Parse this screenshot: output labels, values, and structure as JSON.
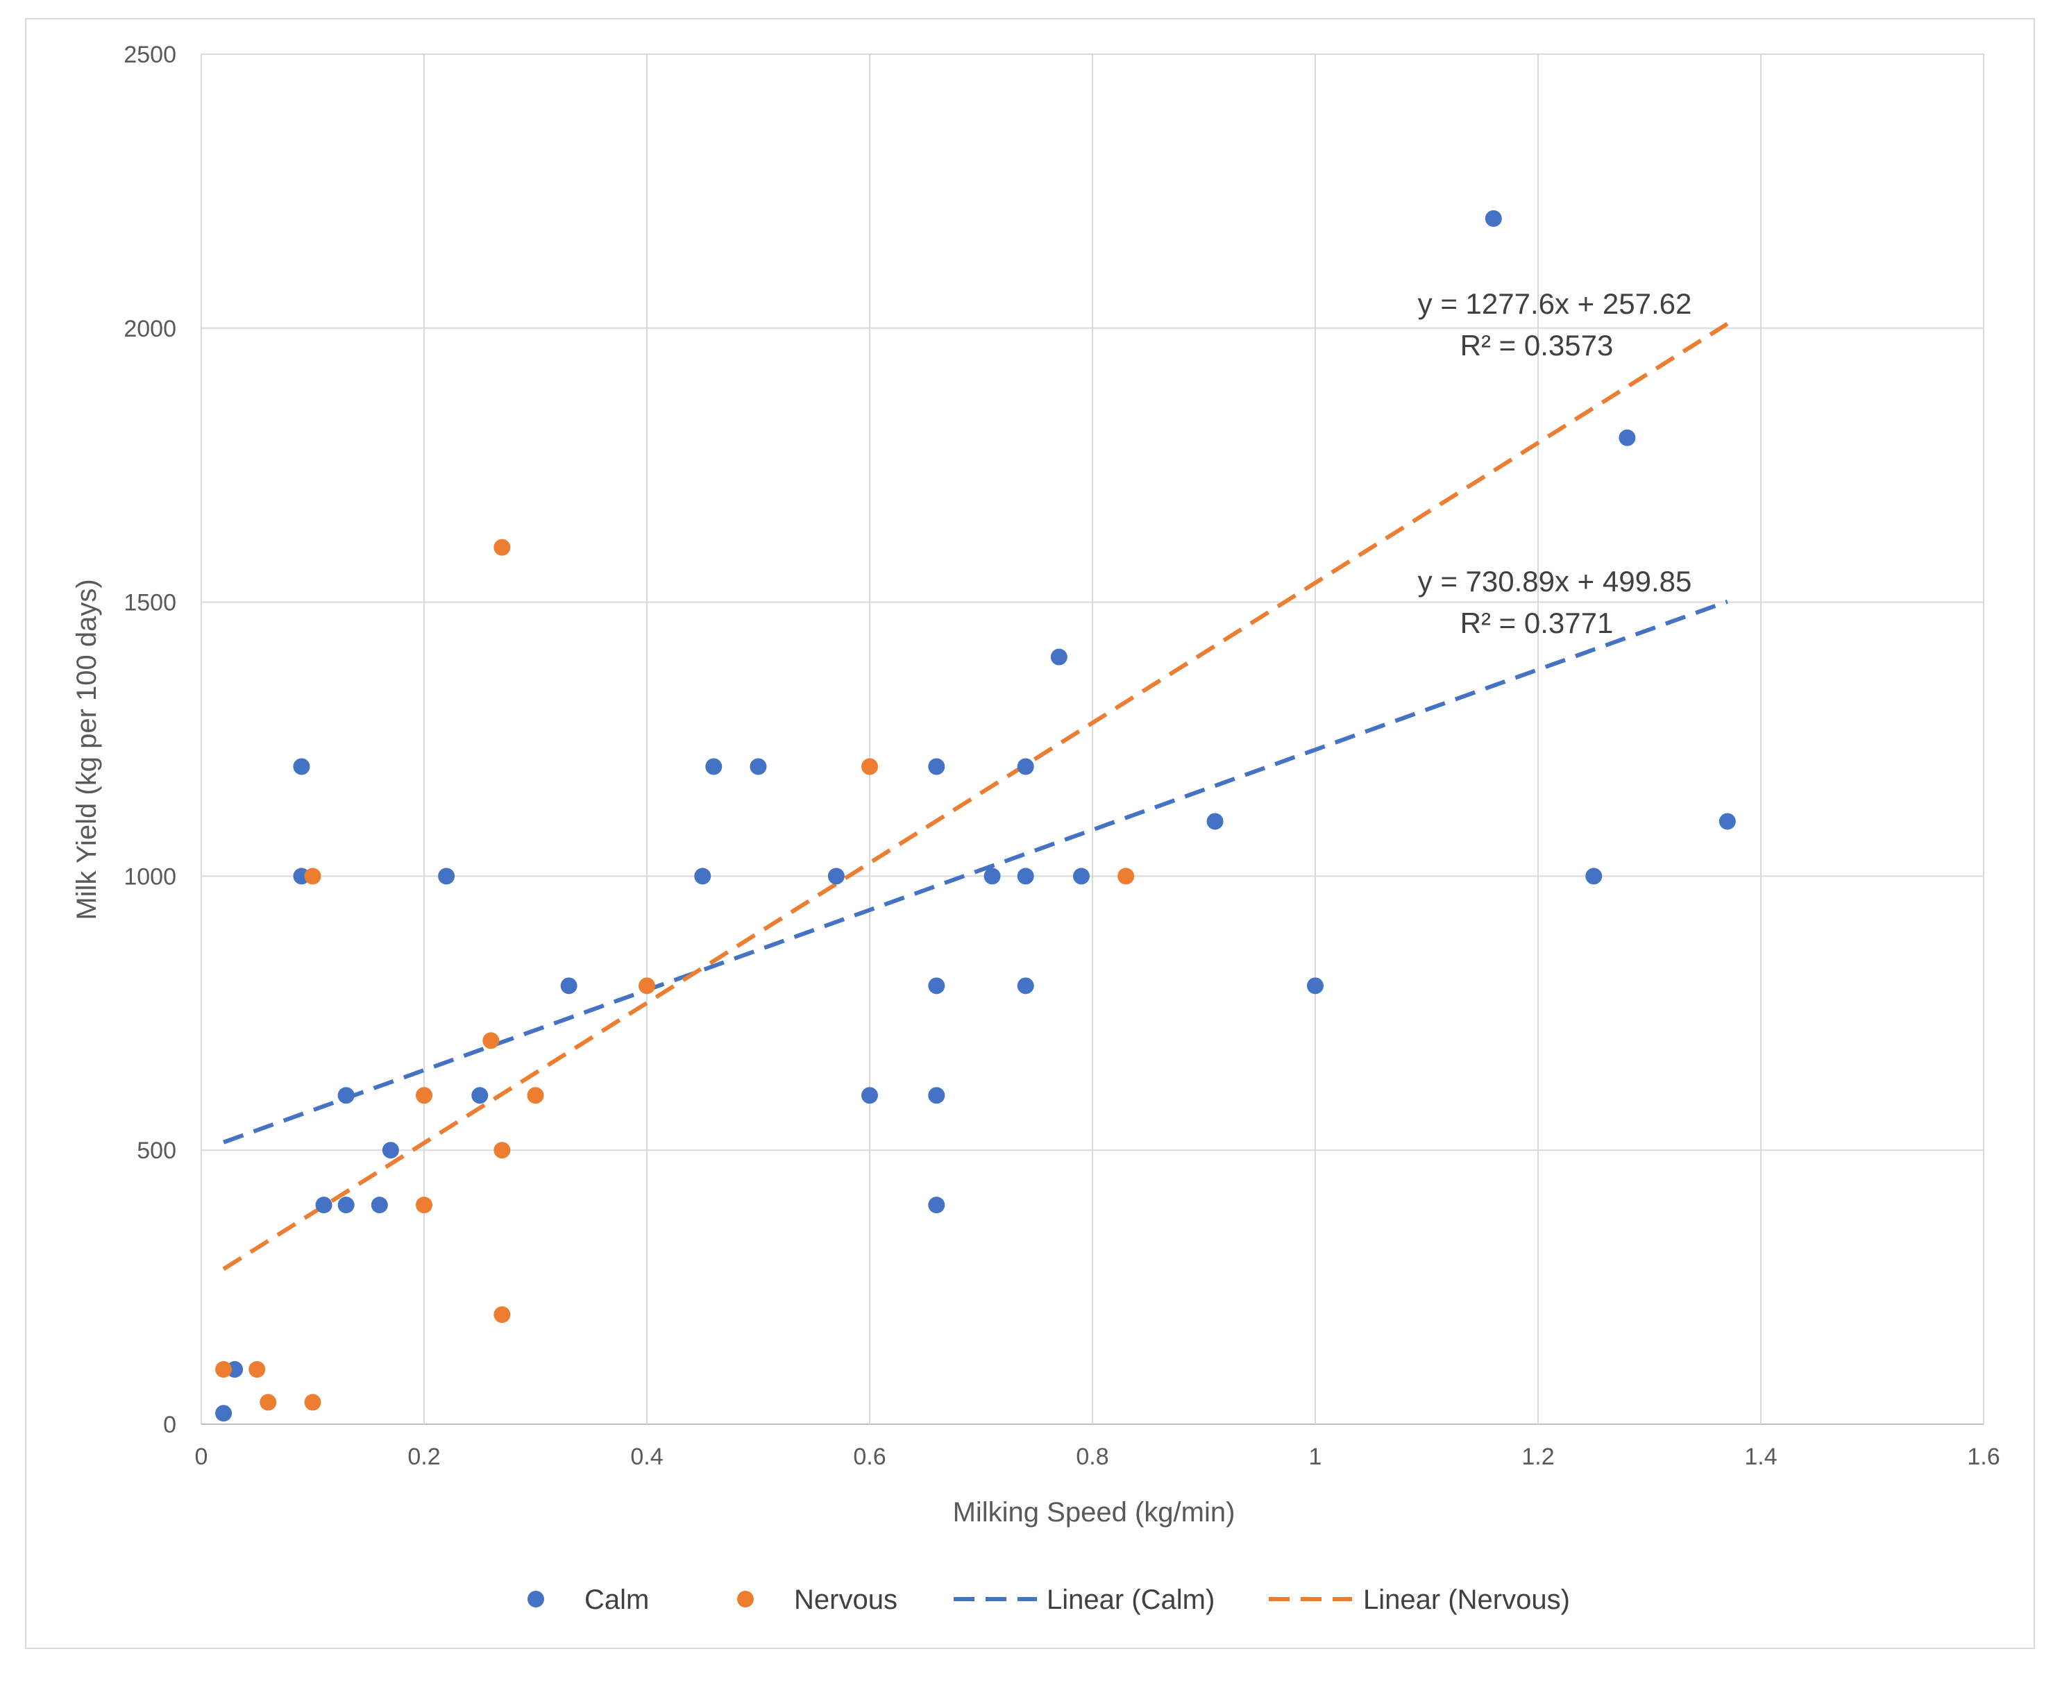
{
  "chart_data": {
    "type": "scatter",
    "title": "",
    "xlabel": "Milking Speed (kg/min)",
    "ylabel": "Milk Yield (kg per 100 days)",
    "xlim": [
      0,
      1.6
    ],
    "ylim": [
      0,
      2500
    ],
    "x_ticks": [
      0,
      0.2,
      0.4,
      0.6,
      0.8,
      1,
      1.2,
      1.4,
      1.6
    ],
    "x_tick_labels": [
      "0",
      "0.2",
      "0.4",
      "0.6",
      "0.8",
      "1",
      "1.2",
      "1.4",
      "1.6"
    ],
    "y_ticks": [
      0,
      500,
      1000,
      1500,
      2000,
      2500
    ],
    "y_tick_labels": [
      "0",
      "500",
      "1000",
      "1500",
      "2000",
      "2500"
    ],
    "grid": true,
    "legend_position": "bottom",
    "series": [
      {
        "name": "Calm",
        "color": "#4472c4",
        "points": [
          [
            0.02,
            20
          ],
          [
            0.03,
            100
          ],
          [
            0.09,
            1200
          ],
          [
            0.09,
            1000
          ],
          [
            0.11,
            400
          ],
          [
            0.13,
            400
          ],
          [
            0.13,
            600
          ],
          [
            0.16,
            400
          ],
          [
            0.17,
            500
          ],
          [
            0.22,
            1000
          ],
          [
            0.25,
            600
          ],
          [
            0.33,
            800
          ],
          [
            0.45,
            1000
          ],
          [
            0.46,
            1200
          ],
          [
            0.5,
            1200
          ],
          [
            0.57,
            1000
          ],
          [
            0.6,
            600
          ],
          [
            0.66,
            1200
          ],
          [
            0.66,
            800
          ],
          [
            0.66,
            600
          ],
          [
            0.66,
            400
          ],
          [
            0.71,
            1000
          ],
          [
            0.74,
            1200
          ],
          [
            0.74,
            1000
          ],
          [
            0.74,
            800
          ],
          [
            0.77,
            1400
          ],
          [
            0.79,
            1000
          ],
          [
            0.91,
            1100
          ],
          [
            1.0,
            800
          ],
          [
            1.16,
            2200
          ],
          [
            1.25,
            1000
          ],
          [
            1.28,
            1800
          ],
          [
            1.37,
            1100
          ]
        ]
      },
      {
        "name": "Nervous",
        "color": "#ed7d31",
        "points": [
          [
            0.02,
            100
          ],
          [
            0.05,
            100
          ],
          [
            0.06,
            40
          ],
          [
            0.1,
            40
          ],
          [
            0.1,
            1000
          ],
          [
            0.2,
            600
          ],
          [
            0.2,
            400
          ],
          [
            0.26,
            700
          ],
          [
            0.27,
            1600
          ],
          [
            0.27,
            500
          ],
          [
            0.27,
            200
          ],
          [
            0.3,
            600
          ],
          [
            0.4,
            800
          ],
          [
            0.6,
            1200
          ],
          [
            0.83,
            1000
          ]
        ]
      }
    ],
    "trendlines": [
      {
        "name": "Linear (Calm)",
        "color": "#4472c4",
        "slope": 730.89,
        "intercept": 499.85,
        "x_range": [
          0.02,
          1.37
        ],
        "equation": "y = 730.89x + 499.85",
        "r2": "R² = 0.3771"
      },
      {
        "name": "Linear (Nervous)",
        "color": "#ed7d31",
        "slope": 1277.6,
        "intercept": 257.62,
        "x_range": [
          0.02,
          1.37
        ],
        "equation": "y = 1277.6x + 257.62",
        "r2": "R² = 0.3573"
      }
    ],
    "legend": [
      "Calm",
      "Nervous",
      "Linear (Calm)",
      "Linear (Nervous)"
    ]
  }
}
